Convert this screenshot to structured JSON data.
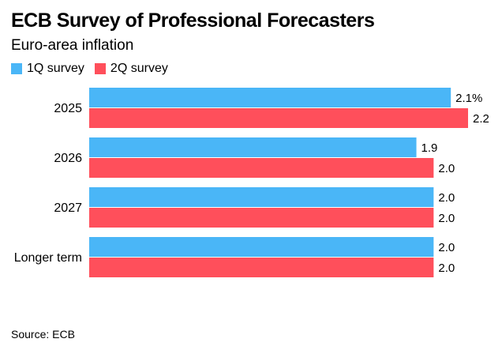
{
  "title": "ECB Survey of Professional Forecasters",
  "subtitle": "Euro-area inflation",
  "source": "Source: ECB",
  "colors": {
    "series1": "#4AB6F7",
    "series2": "#FF4F5B"
  },
  "chart_data": {
    "type": "bar",
    "orientation": "horizontal",
    "title": "ECB Survey of Professional Forecasters",
    "subtitle": "Euro-area inflation",
    "categories": [
      "2025",
      "2026",
      "2027",
      "Longer term"
    ],
    "series": [
      {
        "name": "1Q survey",
        "values": [
          2.1,
          1.9,
          2.0,
          2.0
        ],
        "labels": [
          "2.1%",
          "1.9",
          "2.0",
          "2.0"
        ]
      },
      {
        "name": "2Q survey",
        "values": [
          2.2,
          2.0,
          2.0,
          2.0
        ],
        "labels": [
          "2.2",
          "2.0",
          "2.0",
          "2.0"
        ]
      }
    ],
    "xlim": [
      0,
      2.2
    ],
    "grid": false,
    "legend": "top-left"
  }
}
